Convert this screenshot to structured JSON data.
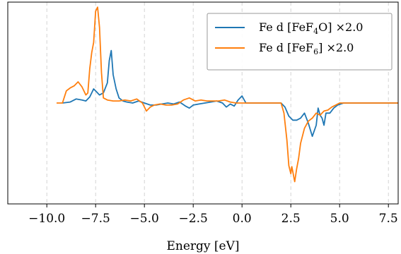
{
  "chart_data": {
    "type": "line",
    "xlabel": "Energy [eV]",
    "ylabel": "",
    "xlim": [
      -12.0,
      8.0
    ],
    "ylim": [
      -1.0,
      1.0
    ],
    "x_ticks": [
      -10.0,
      -7.5,
      -5.0,
      -2.5,
      0.0,
      2.5,
      5.0,
      7.5
    ],
    "x_tick_labels": [
      "−10.0",
      "−7.5",
      "−5.0",
      "−2.5",
      "0.0",
      "2.5",
      "5.0",
      "7.5"
    ],
    "grid": "vertical-dashed",
    "legend_position": "top-right",
    "series": [
      {
        "name": "Fe d [FeF4O] ×2.0",
        "legend": {
          "pre": "Fe d [FeF",
          "sub1": "4",
          "mid": "O] ",
          "post": "×2.0"
        },
        "color": "#1f77b4",
        "x": [
          -9.2,
          -8.8,
          -8.5,
          -8.2,
          -8.0,
          -7.8,
          -7.6,
          -7.45,
          -7.3,
          -7.1,
          -6.9,
          -6.8,
          -6.7,
          -6.6,
          -6.45,
          -6.3,
          -6.1,
          -5.9,
          -5.6,
          -5.3,
          -5.0,
          -4.7,
          -4.4,
          -4.1,
          -3.8,
          -3.5,
          -3.2,
          -2.9,
          -2.7,
          -2.5,
          -2.2,
          -1.9,
          -1.6,
          -1.3,
          -1.0,
          -0.8,
          -0.6,
          -0.4,
          -0.2,
          0.0,
          0.2,
          0.5,
          1.0,
          1.5,
          2.0,
          2.2,
          2.4,
          2.6,
          2.8,
          3.0,
          3.2,
          3.4,
          3.6,
          3.8,
          3.9,
          4.0,
          4.1,
          4.2,
          4.3,
          4.5,
          4.7,
          4.9,
          5.2,
          6.0,
          7.0,
          8.0
        ],
        "y": [
          0.0,
          0.01,
          0.04,
          0.03,
          0.02,
          0.06,
          0.14,
          0.11,
          0.08,
          0.1,
          0.2,
          0.42,
          0.52,
          0.28,
          0.14,
          0.05,
          0.02,
          0.01,
          0.0,
          0.02,
          0.0,
          -0.02,
          -0.02,
          -0.01,
          0.0,
          -0.01,
          0.01,
          -0.03,
          -0.05,
          -0.02,
          -0.01,
          0.0,
          0.01,
          0.02,
          0.0,
          -0.04,
          -0.01,
          -0.03,
          0.03,
          0.07,
          0.0,
          0.0,
          0.0,
          0.0,
          0.0,
          -0.04,
          -0.13,
          -0.17,
          -0.17,
          -0.15,
          -0.1,
          -0.2,
          -0.33,
          -0.22,
          -0.05,
          -0.12,
          -0.15,
          -0.22,
          -0.1,
          -0.1,
          -0.05,
          -0.02,
          0.0,
          0.0,
          0.0,
          0.0
        ]
      },
      {
        "name": "Fe d [FeF6] ×2.0",
        "legend": {
          "pre": "Fe d [FeF",
          "sub1": "6",
          "mid": "] ",
          "post": "×2.0"
        },
        "color": "#ff7f0e",
        "x": [
          -9.5,
          -9.2,
          -9.0,
          -8.8,
          -8.6,
          -8.4,
          -8.2,
          -8.0,
          -7.9,
          -7.8,
          -7.7,
          -7.6,
          -7.5,
          -7.4,
          -7.3,
          -7.2,
          -7.1,
          -6.9,
          -6.6,
          -6.3,
          -6.0,
          -5.7,
          -5.4,
          -5.1,
          -4.9,
          -4.7,
          -4.5,
          -4.2,
          -3.9,
          -3.6,
          -3.3,
          -3.0,
          -2.7,
          -2.4,
          -2.1,
          -1.8,
          -1.5,
          -1.2,
          -0.9,
          -0.6,
          -0.3,
          0.0,
          0.5,
          1.0,
          1.5,
          2.0,
          2.15,
          2.3,
          2.4,
          2.5,
          2.55,
          2.6,
          2.7,
          2.8,
          2.9,
          3.0,
          3.2,
          3.4,
          3.6,
          3.8,
          4.0,
          4.2,
          4.4,
          4.6,
          4.8,
          5.0,
          6.0,
          7.0,
          8.0
        ],
        "y": [
          0.0,
          0.0,
          0.12,
          0.15,
          0.17,
          0.21,
          0.16,
          0.08,
          0.1,
          0.34,
          0.5,
          0.6,
          0.91,
          0.95,
          0.75,
          0.3,
          0.05,
          0.03,
          0.02,
          0.02,
          0.03,
          0.02,
          0.04,
          0.0,
          -0.08,
          -0.04,
          -0.02,
          -0.01,
          -0.02,
          -0.02,
          -0.01,
          0.03,
          0.05,
          0.02,
          0.03,
          0.02,
          0.02,
          0.02,
          0.03,
          0.01,
          0.0,
          0.0,
          0.0,
          0.0,
          0.0,
          0.0,
          -0.1,
          -0.37,
          -0.62,
          -0.7,
          -0.63,
          -0.68,
          -0.78,
          -0.65,
          -0.55,
          -0.4,
          -0.25,
          -0.18,
          -0.15,
          -0.1,
          -0.12,
          -0.08,
          -0.07,
          -0.04,
          -0.02,
          0.0,
          0.0,
          0.0,
          0.0
        ]
      }
    ]
  }
}
